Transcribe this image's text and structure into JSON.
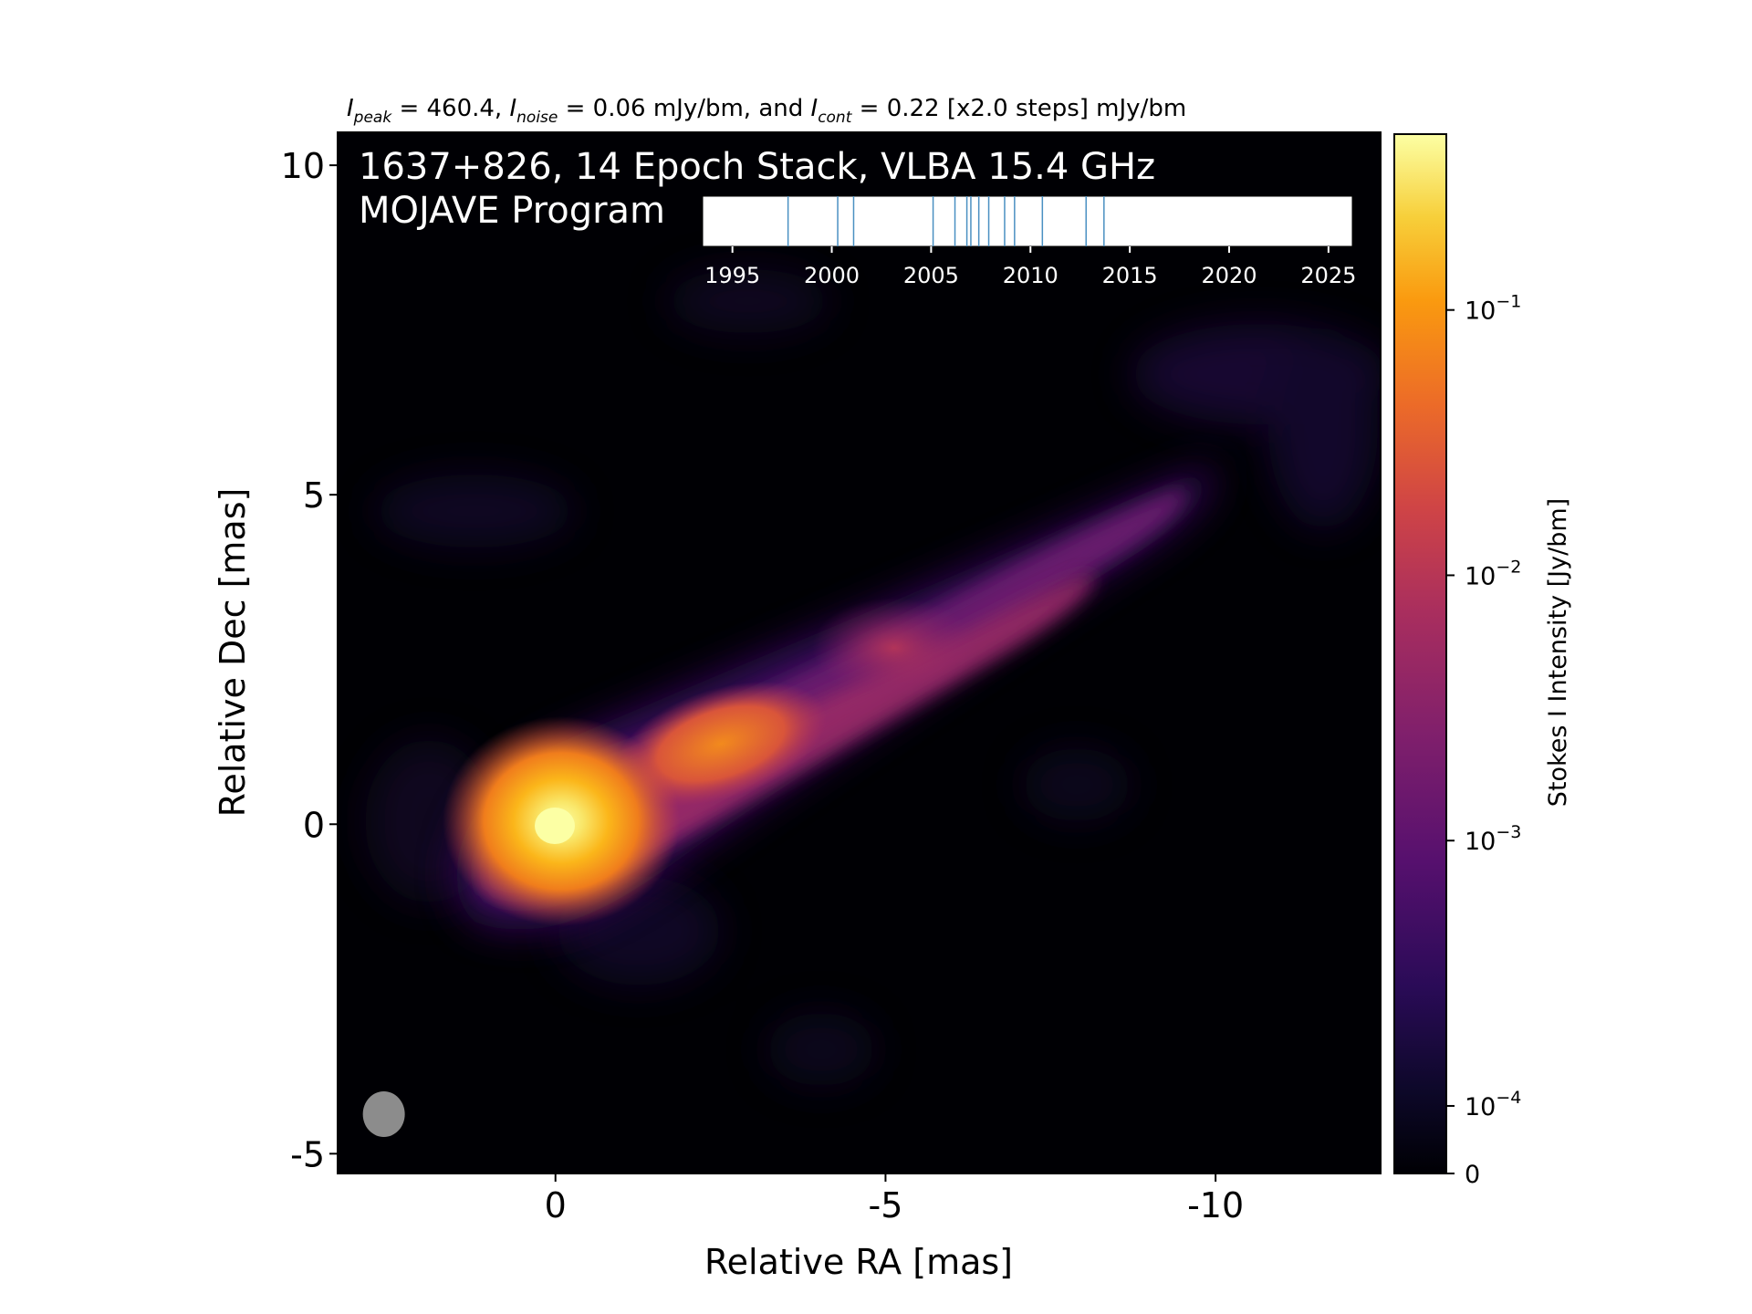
{
  "chart_data": {
    "type": "heatmap",
    "title_parts": {
      "peak_label": "I",
      "peak_sub": "peak",
      "peak_value": " = 460.4, ",
      "noise_label": "I",
      "noise_sub": "noise",
      "noise_value": " = 0.06 mJy/bm, and ",
      "cont_label": "I",
      "cont_sub": "cont",
      "cont_value": " = 0.22 [x2.0 steps] mJy/bm"
    },
    "overlay_title_line1": "1637+826, 14 Epoch Stack, VLBA 15.4 GHz",
    "overlay_title_line2": "MOJAVE Program",
    "xlabel": "Relative RA [mas]",
    "ylabel": "Relative Dec [mas]",
    "xlim": [
      3.3,
      -12.5
    ],
    "ylim": [
      -5.3,
      10.5
    ],
    "x_ticks": [
      {
        "value": 0,
        "label": "0"
      },
      {
        "value": -5,
        "label": "-5"
      },
      {
        "value": -10,
        "label": "-10"
      }
    ],
    "y_ticks": [
      {
        "value": -5,
        "label": "-5"
      },
      {
        "value": 0,
        "label": "0"
      },
      {
        "value": 5,
        "label": "5"
      },
      {
        "value": 10,
        "label": "10"
      }
    ],
    "colormap": "inferno",
    "colorbar": {
      "label": "Stokes I Intensity [Jy/bm]",
      "scale": "symlog",
      "range": [
        0,
        0.46
      ],
      "ticks": [
        {
          "value": 0,
          "label": "0"
        },
        {
          "value": 0.0001,
          "base": "10",
          "exp": "−4"
        },
        {
          "value": 0.001,
          "base": "10",
          "exp": "−3"
        },
        {
          "value": 0.01,
          "base": "10",
          "exp": "−2"
        },
        {
          "value": 0.1,
          "base": "10",
          "exp": "−1"
        }
      ]
    },
    "contour_color": "#f0d8f0",
    "beam": {
      "ra": 2.6,
      "dec": -4.4,
      "color": "#8c8c8c"
    },
    "timeline": {
      "xlim": [
        1993.5,
        2026.2
      ],
      "ticks": [
        {
          "value": 1995,
          "label": "1995"
        },
        {
          "value": 2000,
          "label": "2000"
        },
        {
          "value": 2005,
          "label": "2005"
        },
        {
          "value": 2010,
          "label": "2010"
        },
        {
          "value": 2015,
          "label": "2015"
        },
        {
          "value": 2020,
          "label": "2020"
        },
        {
          "value": 2025,
          "label": "2025"
        }
      ],
      "epochs": [
        1997.8,
        2000.3,
        2001.1,
        2005.1,
        2006.2,
        2007.0,
        2007.4,
        2007.9,
        2008.7,
        2009.2,
        2010.6,
        2012.8,
        2013.7,
        2006.8
      ],
      "epoch_color": "#4a90c2"
    }
  }
}
